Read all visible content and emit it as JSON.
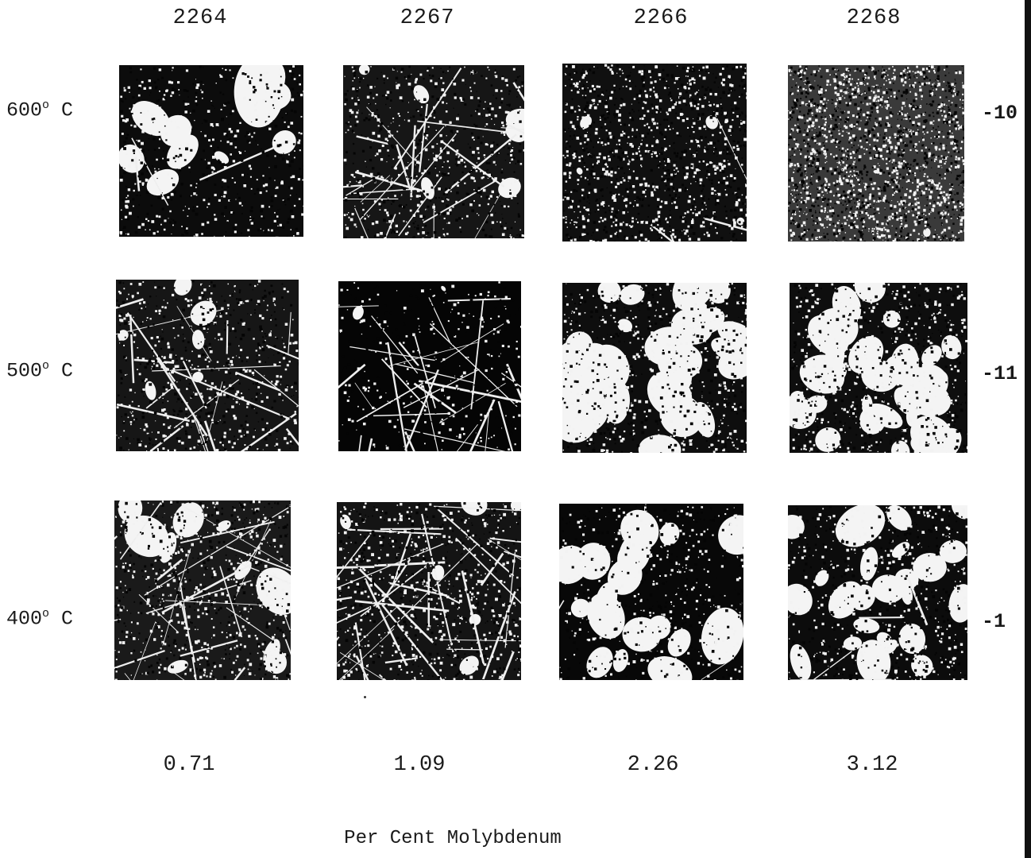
{
  "columns": [
    {
      "id": "2264",
      "mo": "0.71"
    },
    {
      "id": "2267",
      "mo": "1.09"
    },
    {
      "id": "2266",
      "mo": "2.26"
    },
    {
      "id": "2268",
      "mo": "3.12"
    }
  ],
  "rows": [
    {
      "temp": "600",
      "unit": "C",
      "mark": "-10"
    },
    {
      "temp": "500",
      "unit": "C",
      "mark": "-11"
    },
    {
      "temp": "400",
      "unit": "C",
      "mark": "-1"
    }
  ],
  "degree_symbol": "o",
  "caption": "Per Cent Molybdenum",
  "micrographs": [
    {
      "row": "600",
      "col": "2264",
      "texture": "coarse-dark-grains"
    },
    {
      "row": "600",
      "col": "2267",
      "texture": "acicular-mixed"
    },
    {
      "row": "600",
      "col": "2266",
      "texture": "fine-mottled-dark"
    },
    {
      "row": "600",
      "col": "2268",
      "texture": "fine-speckled-light"
    },
    {
      "row": "500",
      "col": "2264",
      "texture": "acicular-mixed"
    },
    {
      "row": "500",
      "col": "2267",
      "texture": "needles-on-dark"
    },
    {
      "row": "500",
      "col": "2266",
      "texture": "blotchy-light"
    },
    {
      "row": "500",
      "col": "2268",
      "texture": "blotchy-light"
    },
    {
      "row": "400",
      "col": "2264",
      "texture": "acicular-light"
    },
    {
      "row": "400",
      "col": "2267",
      "texture": "needles-light"
    },
    {
      "row": "400",
      "col": "2266",
      "texture": "blotchy-dark"
    },
    {
      "row": "400",
      "col": "2268",
      "texture": "blotchy-mixed"
    }
  ]
}
